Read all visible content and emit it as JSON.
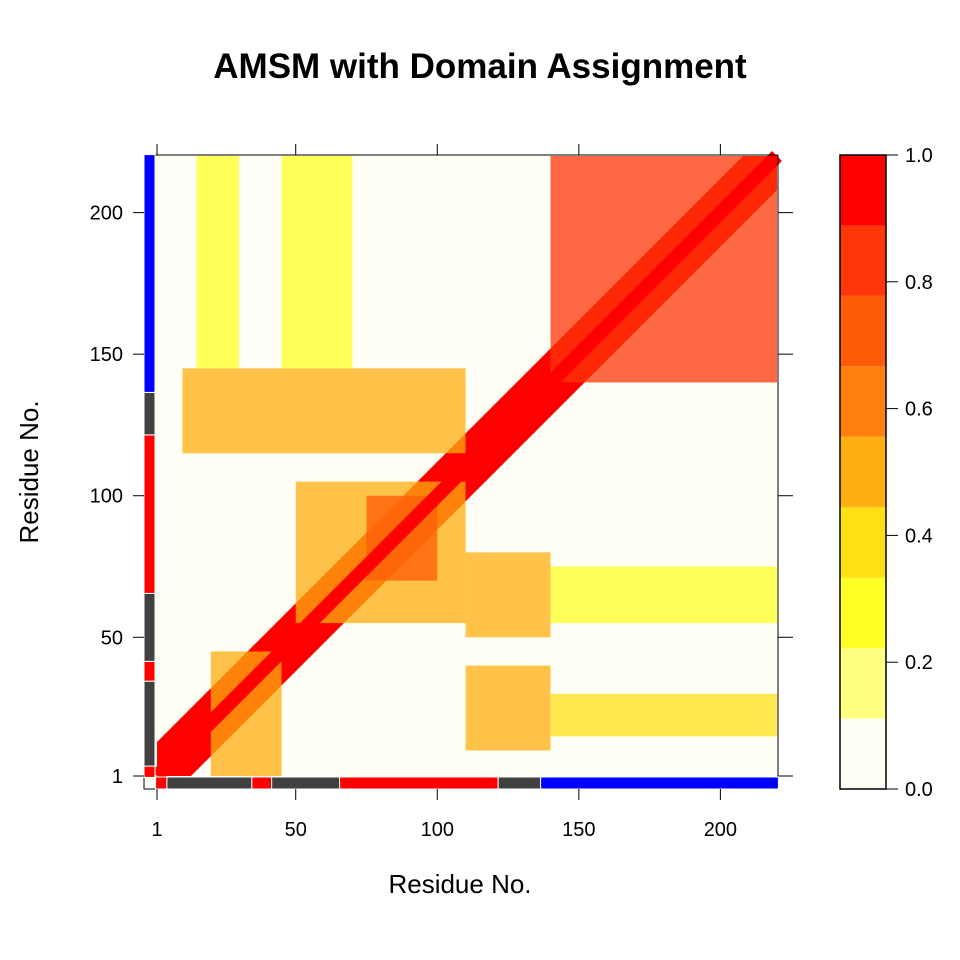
{
  "chart_data": {
    "type": "heatmap",
    "title": "AMSM with Domain Assignment",
    "xlabel": "Residue No.",
    "ylabel": "Residue No.",
    "xlim": [
      1,
      220
    ],
    "ylim": [
      1,
      220
    ],
    "x_ticks": [
      "1",
      "50",
      "100",
      "150",
      "200"
    ],
    "y_ticks": [
      "1",
      "50",
      "100",
      "150",
      "200"
    ],
    "colorbar": {
      "range": [
        0,
        1
      ],
      "ticks": [
        "0.0",
        "0.2",
        "0.4",
        "0.6",
        "0.8",
        "1.0"
      ],
      "levels": [
        "#FFFFF5",
        "#FFFF80",
        "#FFFF26",
        "#FFE014",
        "#FFAF0F",
        "#FF800D",
        "#FF5C0A",
        "#FF3608",
        "#FF0000"
      ]
    },
    "domain_segments": [
      {
        "start": 1,
        "end": 4,
        "color": "#FF0000"
      },
      {
        "start": 5,
        "end": 34,
        "color": "#404040"
      },
      {
        "start": 35,
        "end": 41,
        "color": "#FF0000"
      },
      {
        "start": 42,
        "end": 65,
        "color": "#404040"
      },
      {
        "start": 66,
        "end": 121,
        "color": "#FF0000"
      },
      {
        "start": 122,
        "end": 136,
        "color": "#404040"
      },
      {
        "start": 137,
        "end": 220,
        "color": "#0000FF"
      }
    ],
    "blocks": [
      {
        "x": [
          1,
          220
        ],
        "y": [
          1,
          220
        ],
        "band": 12,
        "value": 0.92
      },
      {
        "x": [
          140,
          220
        ],
        "y": [
          140,
          220
        ],
        "value": 0.82
      },
      {
        "x": [
          20,
          45
        ],
        "y": [
          1,
          45
        ],
        "value": 0.55
      },
      {
        "x": [
          50,
          110
        ],
        "y": [
          55,
          105
        ],
        "value": 0.45
      },
      {
        "x": [
          75,
          100
        ],
        "y": [
          70,
          100
        ],
        "value": 0.7
      },
      {
        "x": [
          110,
          140
        ],
        "y": [
          10,
          40
        ],
        "value": 0.55
      },
      {
        "x": [
          110,
          140
        ],
        "y": [
          50,
          80
        ],
        "value": 0.5
      },
      {
        "x": [
          140,
          220
        ],
        "y": [
          15,
          30
        ],
        "value": 0.35
      },
      {
        "x": [
          140,
          220
        ],
        "y": [
          55,
          75
        ],
        "value": 0.25
      },
      {
        "x": [
          10,
          110
        ],
        "y": [
          115,
          145
        ],
        "value": 0.45
      },
      {
        "x": [
          15,
          30
        ],
        "y": [
          145,
          220
        ],
        "value": 0.3
      },
      {
        "x": [
          45,
          70
        ],
        "y": [
          145,
          220
        ],
        "value": 0.3
      }
    ]
  }
}
